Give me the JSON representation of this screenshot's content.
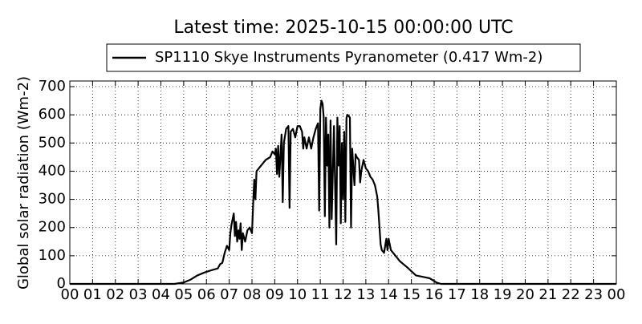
{
  "chart_data": {
    "type": "line",
    "title": "Latest time: 2025-10-15 00:00:00 UTC",
    "ylabel": "Global solar radiation (Wm-2)",
    "x": [
      0,
      4.6,
      5.0,
      5.3,
      5.6,
      5.9,
      6.2,
      6.5,
      6.6,
      6.7,
      6.8,
      6.9,
      7.0,
      7.05,
      7.1,
      7.15,
      7.2,
      7.25,
      7.3,
      7.35,
      7.4,
      7.45,
      7.5,
      7.55,
      7.6,
      7.7,
      7.8,
      7.9,
      8.0,
      8.05,
      8.1,
      8.15,
      8.2,
      8.4,
      8.6,
      8.8,
      8.9,
      9.0,
      9.05,
      9.1,
      9.15,
      9.2,
      9.3,
      9.35,
      9.4,
      9.5,
      9.6,
      9.65,
      9.7,
      9.8,
      9.9,
      10.0,
      10.1,
      10.2,
      10.25,
      10.3,
      10.4,
      10.5,
      10.6,
      10.7,
      10.8,
      10.9,
      10.95,
      11.0,
      11.05,
      11.1,
      11.15,
      11.2,
      11.25,
      11.3,
      11.35,
      11.4,
      11.45,
      11.5,
      11.6,
      11.7,
      11.75,
      11.8,
      11.85,
      11.9,
      11.95,
      12.0,
      12.05,
      12.1,
      12.15,
      12.2,
      12.3,
      12.35,
      12.4,
      12.5,
      12.55,
      12.6,
      12.7,
      12.75,
      12.8,
      12.9,
      13.0,
      13.1,
      13.2,
      13.3,
      13.4,
      13.5,
      13.55,
      13.6,
      13.65,
      13.7,
      13.8,
      13.9,
      13.95,
      14.0,
      14.1,
      14.3,
      14.5,
      14.8,
      15.0,
      15.2,
      15.5,
      15.8,
      16.1,
      16.3,
      24
    ],
    "series": [
      {
        "name": "SP1110 Skye Instruments Pyranometer (0.417 Wm-2)",
        "color": "#000000",
        "values": [
          0,
          0,
          5,
          15,
          30,
          40,
          48,
          55,
          70,
          75,
          110,
          135,
          120,
          180,
          210,
          230,
          250,
          170,
          220,
          150,
          190,
          160,
          215,
          120,
          180,
          150,
          190,
          200,
          180,
          280,
          370,
          300,
          400,
          420,
          440,
          450,
          470,
          460,
          480,
          390,
          490,
          380,
          530,
          290,
          500,
          550,
          560,
          270,
          540,
          550,
          520,
          560,
          560,
          540,
          480,
          520,
          480,
          520,
          480,
          520,
          550,
          570,
          260,
          620,
          650,
          640,
          590,
          240,
          590,
          420,
          530,
          200,
          580,
          230,
          560,
          140,
          590,
          420,
          560,
          215,
          500,
          300,
          540,
          220,
          590,
          600,
          590,
          200,
          480,
          350,
          460,
          450,
          440,
          360,
          400,
          440,
          410,
          400,
          380,
          370,
          350,
          310,
          260,
          200,
          140,
          120,
          110,
          160,
          120,
          160,
          120,
          100,
          80,
          60,
          45,
          30,
          25,
          20,
          5,
          0,
          0
        ]
      }
    ],
    "xlim": [
      0,
      24
    ],
    "ylim": [
      0,
      720
    ],
    "xticks": [
      {
        "value": 0,
        "label": "00"
      },
      {
        "value": 1,
        "label": "01"
      },
      {
        "value": 2,
        "label": "02"
      },
      {
        "value": 3,
        "label": "03"
      },
      {
        "value": 4,
        "label": "04"
      },
      {
        "value": 5,
        "label": "05"
      },
      {
        "value": 6,
        "label": "06"
      },
      {
        "value": 7,
        "label": "07"
      },
      {
        "value": 8,
        "label": "08"
      },
      {
        "value": 9,
        "label": "09"
      },
      {
        "value": 10,
        "label": "10"
      },
      {
        "value": 11,
        "label": "11"
      },
      {
        "value": 12,
        "label": "12"
      },
      {
        "value": 13,
        "label": "13"
      },
      {
        "value": 14,
        "label": "14"
      },
      {
        "value": 15,
        "label": "15"
      },
      {
        "value": 16,
        "label": "16"
      },
      {
        "value": 17,
        "label": "17"
      },
      {
        "value": 18,
        "label": "18"
      },
      {
        "value": 19,
        "label": "19"
      },
      {
        "value": 20,
        "label": "20"
      },
      {
        "value": 21,
        "label": "21"
      },
      {
        "value": 22,
        "label": "22"
      },
      {
        "value": 23,
        "label": "23"
      },
      {
        "value": 24,
        "label": "00"
      }
    ],
    "yticks": [
      0,
      100,
      200,
      300,
      400,
      500,
      600,
      700
    ],
    "grid": true,
    "legend": "top"
  }
}
